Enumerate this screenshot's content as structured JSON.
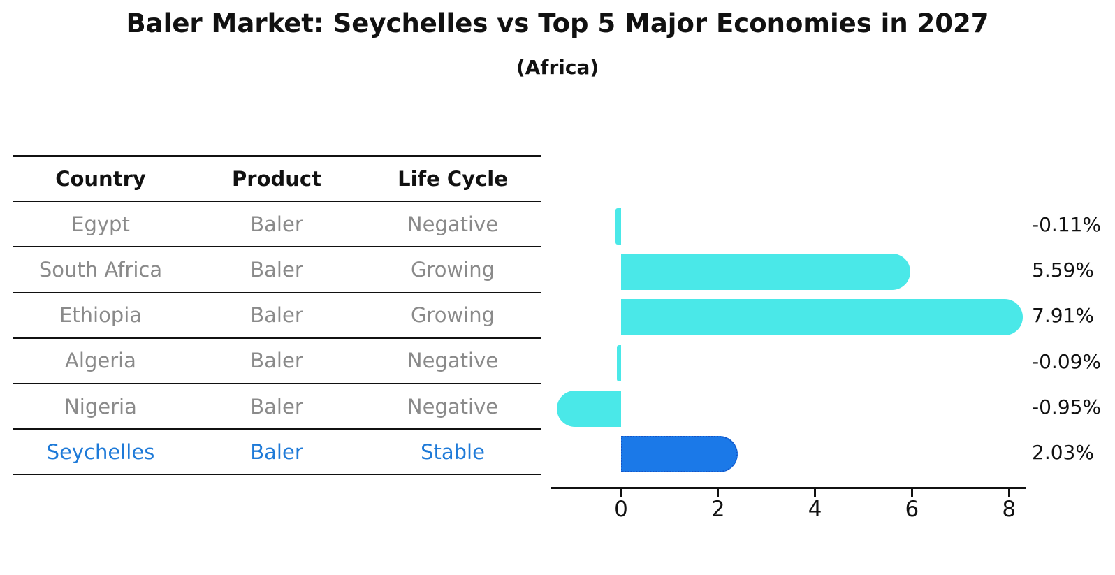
{
  "title": "Baler Market: Seychelles vs Top 5 Major Economies in 2027",
  "subtitle": "(Africa)",
  "table": {
    "headers": [
      "Country",
      "Product",
      "Life Cycle"
    ],
    "rows": [
      {
        "country": "Egypt",
        "product": "Baler",
        "life_cycle": "Negative",
        "highlight": false
      },
      {
        "country": "South Africa",
        "product": "Baler",
        "life_cycle": "Growing",
        "highlight": false
      },
      {
        "country": "Ethiopia",
        "product": "Baler",
        "life_cycle": "Growing",
        "highlight": false
      },
      {
        "country": "Algeria",
        "product": "Baler",
        "life_cycle": "Negative",
        "highlight": false
      },
      {
        "country": "Nigeria",
        "product": "Baler",
        "life_cycle": "Negative",
        "highlight": false
      },
      {
        "country": "Seychelles",
        "product": "Baler",
        "life_cycle": "Stable",
        "highlight": true
      }
    ]
  },
  "chart_data": {
    "type": "bar",
    "orientation": "horizontal",
    "title": "Baler Market: Seychelles vs Top 5 Major Economies in 2027",
    "subtitle": "(Africa)",
    "categories": [
      "Egypt",
      "South Africa",
      "Ethiopia",
      "Algeria",
      "Nigeria",
      "Seychelles"
    ],
    "values": [
      -0.11,
      5.59,
      7.91,
      -0.09,
      -0.95,
      2.03
    ],
    "value_labels": [
      "-0.11%",
      "5.59%",
      "7.91%",
      "-0.09%",
      "-0.95%",
      "2.03%"
    ],
    "highlight_category": "Seychelles",
    "x_ticks": [
      "0",
      "2",
      "4",
      "6",
      "8"
    ],
    "x_tick_values": [
      0,
      2,
      4,
      6,
      8
    ],
    "xlim": [
      -1.45,
      8.35
    ],
    "grid": false,
    "legend": false,
    "colors": {
      "bar_default": "#4ae8e8",
      "bar_highlight": "#1b79e8",
      "bar_highlight_border": "#1456c8",
      "highlight_text": "#1e7ad8",
      "row_text": "#8a8a8a",
      "axis": "#111111"
    }
  }
}
